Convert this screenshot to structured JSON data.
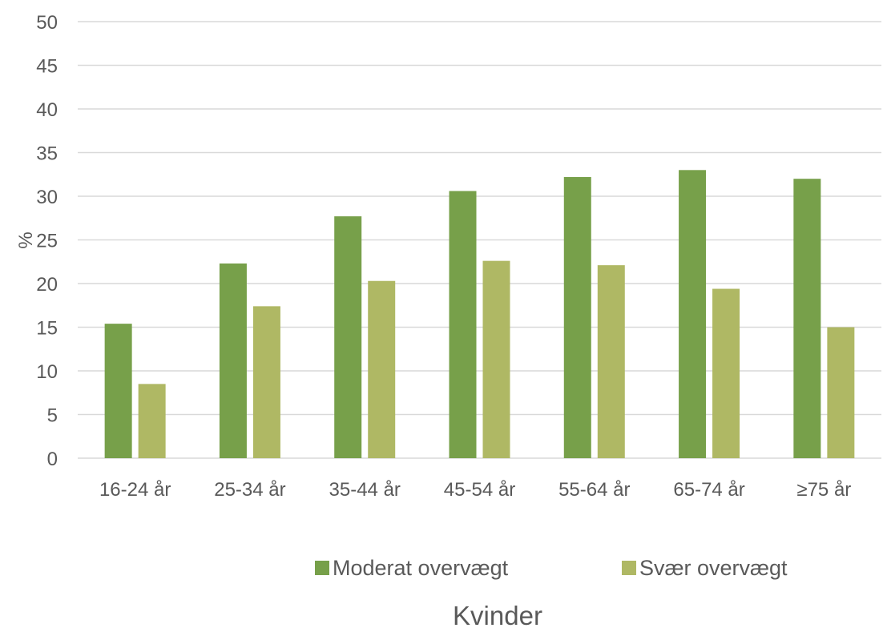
{
  "chart_data": {
    "type": "bar",
    "categories": [
      "16-24 år",
      "25-34 år",
      "35-44 år",
      "45-54 år",
      "55-64 år",
      "65-74 år",
      "≥75 år"
    ],
    "series": [
      {
        "name": "Moderat overvægt",
        "values": [
          15.4,
          22.3,
          27.7,
          30.6,
          32.2,
          33.0,
          32.0
        ],
        "color": "#77a04a"
      },
      {
        "name": "Svær overvægt",
        "values": [
          8.5,
          17.4,
          20.3,
          22.6,
          22.1,
          19.4,
          15.0
        ],
        "color": "#afb864"
      }
    ],
    "ylabel": "%",
    "xlabel": "Kvinder",
    "ylim": [
      0,
      50
    ],
    "yticks": [
      0,
      5,
      10,
      15,
      20,
      25,
      30,
      35,
      40,
      45,
      50
    ],
    "grid": true,
    "legend_position": "bottom"
  }
}
